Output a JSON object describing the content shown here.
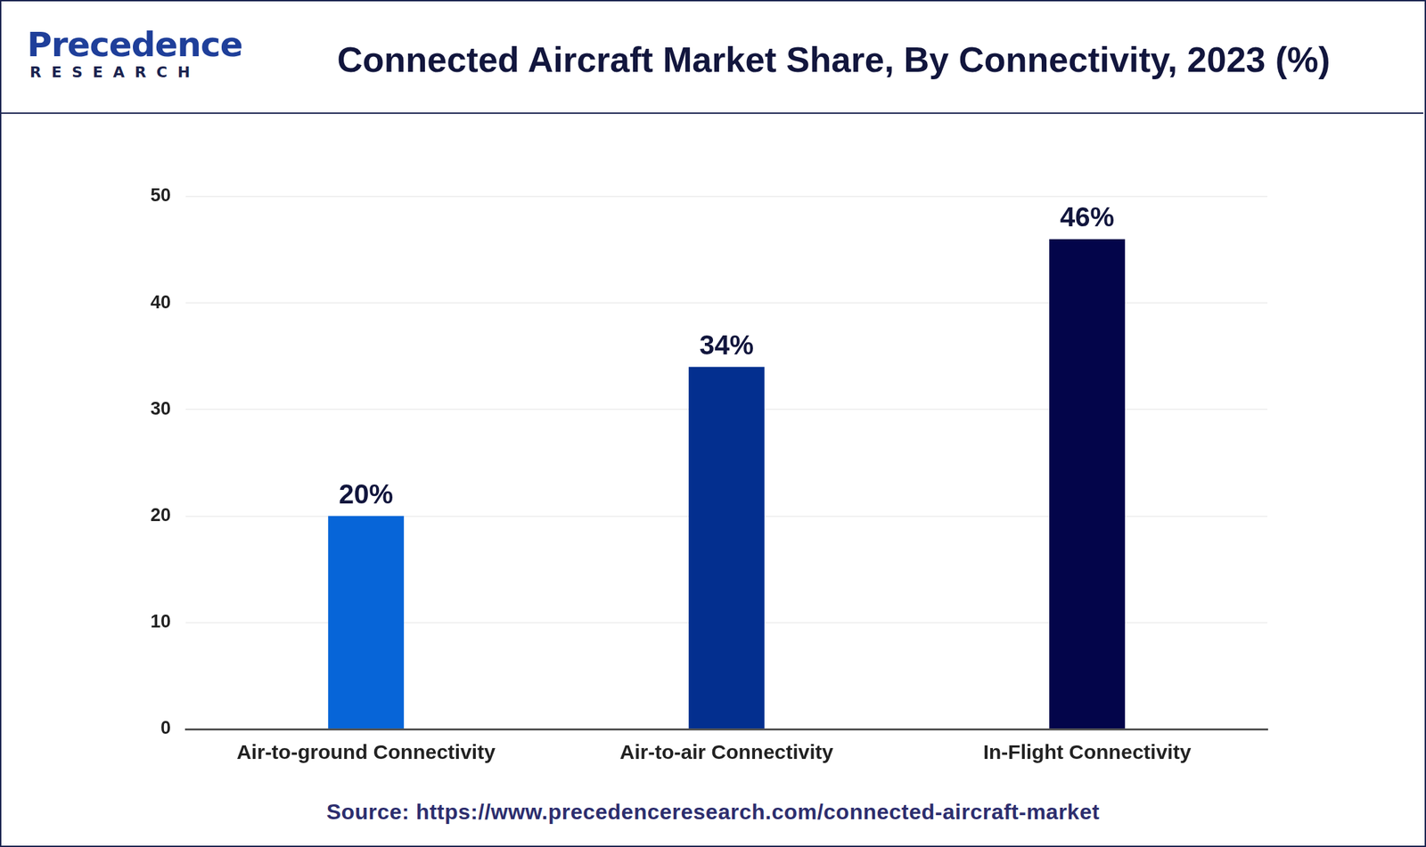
{
  "chart_data": {
    "type": "bar",
    "title": "Connected Aircraft Market Share, By Connectivity, 2023 (%)",
    "brand": {
      "name": "Precedence",
      "tagline": "RESEARCH"
    },
    "source": "Source: https://www.precedenceresearch.com/connected-aircraft-market",
    "categories": [
      "Air-to-ground Connectivity",
      "Air-to-air Connectivity",
      "In-Flight Connectivity"
    ],
    "values": [
      20,
      34,
      46
    ],
    "value_labels": [
      "20%",
      "34%",
      "46%"
    ],
    "colors": [
      "#0765d8",
      "#032f8f",
      "#03054a"
    ],
    "ylim": [
      0,
      50
    ],
    "yticks": [
      0,
      10,
      20,
      30,
      40,
      50
    ],
    "grid": true,
    "data_labels": true
  }
}
